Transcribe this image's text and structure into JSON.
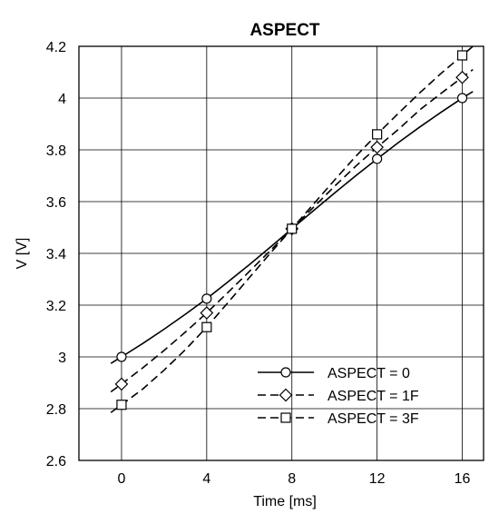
{
  "chart_data": {
    "type": "line",
    "title": "ASPECT",
    "xlabel": "Time [ms]",
    "ylabel": "V [V]",
    "xlim": [
      -2,
      17
    ],
    "ylim": [
      2.6,
      4.2
    ],
    "xticks": [
      0,
      4,
      8,
      12,
      16
    ],
    "yticks": [
      2.6,
      2.8,
      3.0,
      3.2,
      3.4,
      3.6,
      3.8,
      4.0,
      4.2
    ],
    "ytick_labels": [
      "2.6",
      "2.8",
      "3",
      "3.2",
      "3.4",
      "3.6",
      "3.8",
      "4",
      "4.2"
    ],
    "grid": true,
    "legend_position": "bottom-right",
    "series": [
      {
        "name": "ASPECT = 0",
        "line_style": "solid",
        "marker": "circle",
        "x": [
          0,
          4,
          8,
          12,
          16
        ],
        "y": [
          3.0,
          3.225,
          3.495,
          3.765,
          4.0
        ],
        "curve_x": [
          -0.5,
          0,
          1,
          2,
          3,
          4,
          5,
          6,
          7,
          8,
          9,
          10,
          11,
          12,
          13,
          14,
          15,
          16,
          16.5
        ],
        "curve_y": [
          2.975,
          3.0,
          3.052,
          3.107,
          3.165,
          3.225,
          3.29,
          3.356,
          3.425,
          3.495,
          3.564,
          3.633,
          3.7,
          3.765,
          3.828,
          3.888,
          3.945,
          4.0,
          4.025
        ]
      },
      {
        "name": "ASPECT = 1F",
        "line_style": "dashed",
        "marker": "diamond",
        "x": [
          0,
          4,
          8,
          12,
          16
        ],
        "y": [
          2.895,
          3.17,
          3.495,
          3.81,
          4.08
        ],
        "curve_x": [
          -0.5,
          0,
          1,
          2,
          3,
          4,
          5,
          6,
          7,
          8,
          9,
          10,
          11,
          12,
          13,
          14,
          15,
          16,
          16.5
        ],
        "curve_y": [
          2.865,
          2.895,
          2.958,
          3.025,
          3.096,
          3.17,
          3.249,
          3.33,
          3.412,
          3.495,
          3.577,
          3.659,
          3.737,
          3.81,
          3.879,
          3.954,
          4.018,
          4.08,
          4.11
        ]
      },
      {
        "name": "ASPECT = 3F",
        "line_style": "dashed",
        "marker": "square",
        "x": [
          0,
          4,
          8,
          12,
          16
        ],
        "y": [
          2.815,
          3.115,
          3.495,
          3.86,
          4.165
        ],
        "curve_x": [
          -0.5,
          0,
          1,
          2,
          3,
          4,
          5,
          6,
          7,
          8,
          9,
          10,
          11,
          12,
          13,
          14,
          15,
          16,
          16.5
        ],
        "curve_y": [
          2.785,
          2.815,
          2.876,
          2.949,
          3.028,
          3.115,
          3.21,
          3.306,
          3.402,
          3.495,
          3.589,
          3.683,
          3.775,
          3.86,
          3.941,
          4.02,
          4.095,
          4.165,
          4.2
        ]
      }
    ]
  }
}
